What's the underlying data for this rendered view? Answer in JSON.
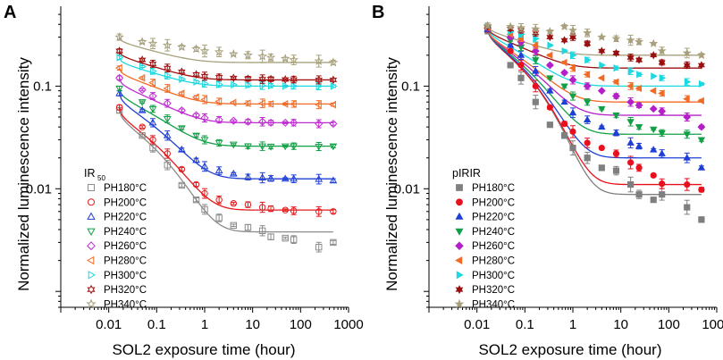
{
  "figure": {
    "ylabel": "Normalized luminescence intensity"
  },
  "chart_data": [
    {
      "type": "scatter",
      "panel": "A",
      "xlabel": "SOL2 exposure time (hour)",
      "ylabel": "Normalized luminescence intensity",
      "xscale": "log",
      "yscale": "log",
      "xlim": [
        0.001,
        1000
      ],
      "ylim": [
        0.0007,
        0.6
      ],
      "xticks": [
        {
          "v": 0.01,
          "label": "0.01"
        },
        {
          "v": 0.1,
          "label": "0.1"
        },
        {
          "v": 1,
          "label": "1"
        },
        {
          "v": 10,
          "label": "10"
        },
        {
          "v": 100,
          "label": "100"
        },
        {
          "v": 1000,
          "label": "1000"
        }
      ],
      "yticks": [
        {
          "v": 0.01,
          "label": "0.01"
        },
        {
          "v": 0.1,
          "label": "0.1"
        }
      ],
      "legend": {
        "title": "IR",
        "title_sub": "50",
        "position": "bottom-left",
        "marker_style": "open"
      },
      "x": [
        0.0167,
        0.05,
        0.083,
        0.167,
        0.333,
        0.667,
        1,
        2,
        4,
        8,
        16,
        24,
        48,
        72,
        240,
        480
      ],
      "series": [
        {
          "name": "PH180°C",
          "color": "#8c8c8c",
          "marker": "square",
          "values": [
            0.058,
            0.033,
            0.025,
            0.017,
            0.0108,
            0.0078,
            0.0063,
            0.0052,
            0.0044,
            0.0042,
            0.0039,
            0.0034,
            0.0033,
            0.0032,
            0.0027,
            0.003
          ],
          "fit": [
            0.06,
            0.0038
          ],
          "err": 0.12
        },
        {
          "name": "PH200°C",
          "color": "#e41a1c",
          "marker": "circle",
          "values": [
            0.062,
            0.04,
            0.03,
            0.022,
            0.0155,
            0.011,
            0.009,
            0.0078,
            0.0072,
            0.007,
            0.0066,
            0.0064,
            0.0062,
            0.0061,
            0.006,
            0.006
          ],
          "fit": [
            0.063,
            0.0062
          ],
          "err": 0.12
        },
        {
          "name": "PH220°C",
          "color": "#1f3fd6",
          "marker": "triangle-up",
          "values": [
            0.085,
            0.058,
            0.044,
            0.033,
            0.024,
            0.019,
            0.0165,
            0.015,
            0.014,
            0.013,
            0.0128,
            0.0126,
            0.0125,
            0.0125,
            0.0124,
            0.012
          ],
          "fit": [
            0.087,
            0.0125
          ],
          "err": 0.12
        },
        {
          "name": "PH240°C",
          "color": "#12a047",
          "marker": "triangle-down",
          "values": [
            0.095,
            0.07,
            0.06,
            0.048,
            0.039,
            0.033,
            0.03,
            0.028,
            0.027,
            0.026,
            0.026,
            0.0258,
            0.026,
            0.026,
            0.0258,
            0.026
          ],
          "fit": [
            0.095,
            0.026
          ],
          "err": 0.1
        },
        {
          "name": "PH260°C",
          "color": "#c02bd3",
          "marker": "diamond",
          "values": [
            0.12,
            0.092,
            0.08,
            0.068,
            0.058,
            0.052,
            0.049,
            0.047,
            0.046,
            0.045,
            0.045,
            0.044,
            0.044,
            0.044,
            0.043,
            0.043
          ],
          "fit": [
            0.12,
            0.044
          ],
          "err": 0.1
        },
        {
          "name": "PH280°C",
          "color": "#f26b24",
          "marker": "triangle-left",
          "values": [
            0.15,
            0.12,
            0.108,
            0.095,
            0.085,
            0.078,
            0.074,
            0.071,
            0.069,
            0.068,
            0.068,
            0.067,
            0.067,
            0.067,
            0.066,
            0.066
          ],
          "fit": [
            0.15,
            0.067
          ],
          "err": 0.1
        },
        {
          "name": "PH300°C",
          "color": "#1cd8e0",
          "marker": "triangle-right",
          "values": [
            0.19,
            0.155,
            0.14,
            0.127,
            0.117,
            0.11,
            0.106,
            0.104,
            0.103,
            0.102,
            0.101,
            0.101,
            0.1,
            0.1,
            0.1,
            0.1
          ],
          "fit": [
            0.19,
            0.1
          ],
          "err": 0.09
        },
        {
          "name": "PH320°C",
          "color": "#a21111",
          "marker": "star6",
          "values": [
            0.22,
            0.18,
            0.165,
            0.15,
            0.138,
            0.13,
            0.125,
            0.122,
            0.12,
            0.118,
            0.117,
            0.117,
            0.116,
            0.116,
            0.115,
            0.115
          ],
          "fit": [
            0.22,
            0.115
          ],
          "err": 0.1
        },
        {
          "name": "PH340°C",
          "color": "#a8a07c",
          "marker": "star",
          "values": [
            0.3,
            0.27,
            0.26,
            0.25,
            0.24,
            0.23,
            0.22,
            0.215,
            0.205,
            0.2,
            0.195,
            0.19,
            0.185,
            0.18,
            0.175,
            0.17
          ],
          "fit": [
            0.3,
            0.17
          ],
          "err": 0.15
        }
      ]
    },
    {
      "type": "scatter",
      "panel": "B",
      "xlabel": "SOL2 exposure time (hour)",
      "ylabel": "Normalized luminescence intensity",
      "xscale": "log",
      "yscale": "log",
      "xlim": [
        0.001,
        1000
      ],
      "ylim": [
        0.0007,
        0.6
      ],
      "xticks": [
        {
          "v": 0.01,
          "label": "0.01"
        },
        {
          "v": 0.1,
          "label": "0.1"
        },
        {
          "v": 1,
          "label": "1"
        },
        {
          "v": 10,
          "label": "10"
        },
        {
          "v": 100,
          "label": "100"
        },
        {
          "v": 1000,
          "label": "1000"
        }
      ],
      "yticks": [
        {
          "v": 0.01,
          "label": "0.01"
        },
        {
          "v": 0.1,
          "label": "0.1"
        }
      ],
      "legend": {
        "title": "pIRIR",
        "title_sub": "",
        "position": "bottom-left",
        "marker_style": "filled"
      },
      "x": [
        0.0167,
        0.05,
        0.083,
        0.167,
        0.333,
        0.667,
        1,
        2,
        4,
        8,
        16,
        24,
        48,
        72,
        240,
        480
      ],
      "series": [
        {
          "name": "PH180°C",
          "color": "#7f7f7f",
          "marker": "square",
          "values": [
            0.35,
            0.16,
            0.12,
            0.07,
            0.042,
            0.033,
            0.025,
            0.02,
            0.016,
            0.015,
            0.011,
            0.0088,
            0.0078,
            0.0088,
            0.0066,
            0.005
          ],
          "fit": [
            0.37,
            0.0088
          ],
          "err": 0.18
        },
        {
          "name": "PH200°C",
          "color": "#e8101c",
          "marker": "circle",
          "values": [
            0.36,
            0.22,
            0.16,
            0.1,
            0.062,
            0.043,
            0.036,
            0.028,
            0.025,
            0.022,
            0.018,
            0.016,
            0.0135,
            0.0112,
            0.011,
            0.0098
          ],
          "fit": [
            0.37,
            0.011
          ],
          "err": 0.15
        },
        {
          "name": "PH220°C",
          "color": "#1f3fd6",
          "marker": "triangle-up",
          "values": [
            0.36,
            0.25,
            0.2,
            0.14,
            0.09,
            0.07,
            0.055,
            0.047,
            0.04,
            0.035,
            0.028,
            0.026,
            0.024,
            0.022,
            0.02,
            0.016
          ],
          "fit": [
            0.37,
            0.02
          ],
          "err": 0.12
        },
        {
          "name": "PH240°C",
          "color": "#12a047",
          "marker": "triangle-down",
          "values": [
            0.37,
            0.28,
            0.24,
            0.18,
            0.12,
            0.1,
            0.08,
            0.07,
            0.06,
            0.052,
            0.045,
            0.04,
            0.038,
            0.035,
            0.034,
            0.03
          ],
          "fit": [
            0.37,
            0.034
          ],
          "err": 0.1
        },
        {
          "name": "PH260°C",
          "color": "#b41fc8",
          "marker": "diamond",
          "values": [
            0.37,
            0.3,
            0.27,
            0.22,
            0.16,
            0.135,
            0.115,
            0.1,
            0.09,
            0.08,
            0.07,
            0.065,
            0.06,
            0.057,
            0.05,
            0.04
          ],
          "fit": [
            0.37,
            0.052
          ],
          "err": 0.1
        },
        {
          "name": "PH280°C",
          "color": "#f26b24",
          "marker": "triangle-left",
          "values": [
            0.37,
            0.32,
            0.29,
            0.25,
            0.2,
            0.17,
            0.15,
            0.13,
            0.12,
            0.11,
            0.1,
            0.095,
            0.09,
            0.085,
            0.075,
            0.072
          ],
          "fit": [
            0.37,
            0.07
          ],
          "err": 0.08
        },
        {
          "name": "PH300°C",
          "color": "#1cd8e0",
          "marker": "triangle-right",
          "values": [
            0.38,
            0.34,
            0.32,
            0.29,
            0.25,
            0.22,
            0.2,
            0.18,
            0.16,
            0.15,
            0.14,
            0.13,
            0.125,
            0.12,
            0.11,
            0.105
          ],
          "fit": [
            0.38,
            0.1
          ],
          "err": 0.08
        },
        {
          "name": "PH320°C",
          "color": "#9a1010",
          "marker": "star6",
          "values": [
            0.38,
            0.36,
            0.35,
            0.33,
            0.3,
            0.28,
            0.3,
            0.26,
            0.22,
            0.21,
            0.19,
            0.18,
            0.2,
            0.17,
            0.16,
            0.16
          ],
          "fit": [
            0.38,
            0.15
          ],
          "err": 0.08
        },
        {
          "name": "PH340°C",
          "color": "#a8a07c",
          "marker": "star",
          "values": [
            0.39,
            0.38,
            0.37,
            0.36,
            0.34,
            0.38,
            0.35,
            0.33,
            0.3,
            0.29,
            0.28,
            0.27,
            0.26,
            0.22,
            0.21,
            0.2
          ],
          "fit": [
            0.39,
            0.2
          ],
          "err": 0.12
        }
      ]
    }
  ]
}
